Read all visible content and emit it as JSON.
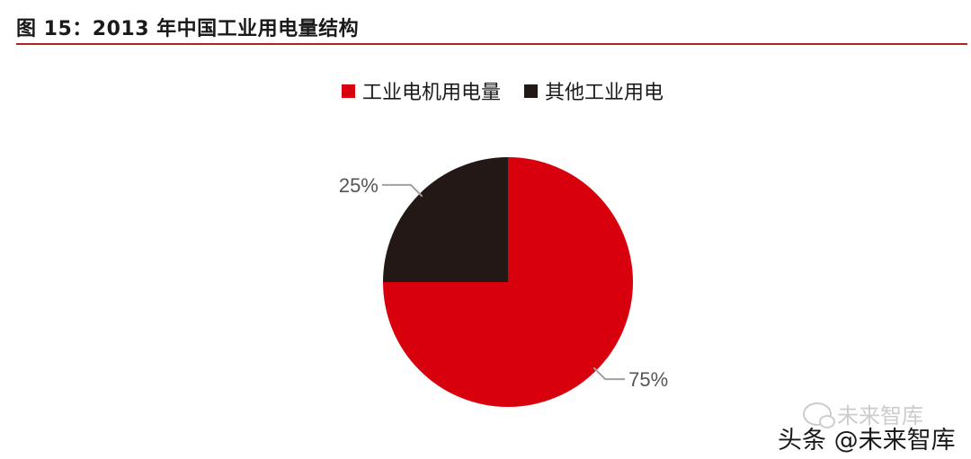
{
  "caption": "图 15：2013 年中国工业用电量结构",
  "colors": {
    "accent": "#b22222",
    "motor": "#d9000e",
    "other": "#231815",
    "leader": "#a0a0a0"
  },
  "chart_data": {
    "type": "pie",
    "title": "",
    "legend_position": "top",
    "series": [
      {
        "name": "工业电机用电量",
        "value": 75,
        "label": "75%",
        "color": "#d9000e"
      },
      {
        "name": "其他工业用电",
        "value": 25,
        "label": "25%",
        "color": "#231815"
      }
    ]
  },
  "watermarks": {
    "wechat": "未来智库",
    "toutiao": "头条 @未来智库"
  }
}
